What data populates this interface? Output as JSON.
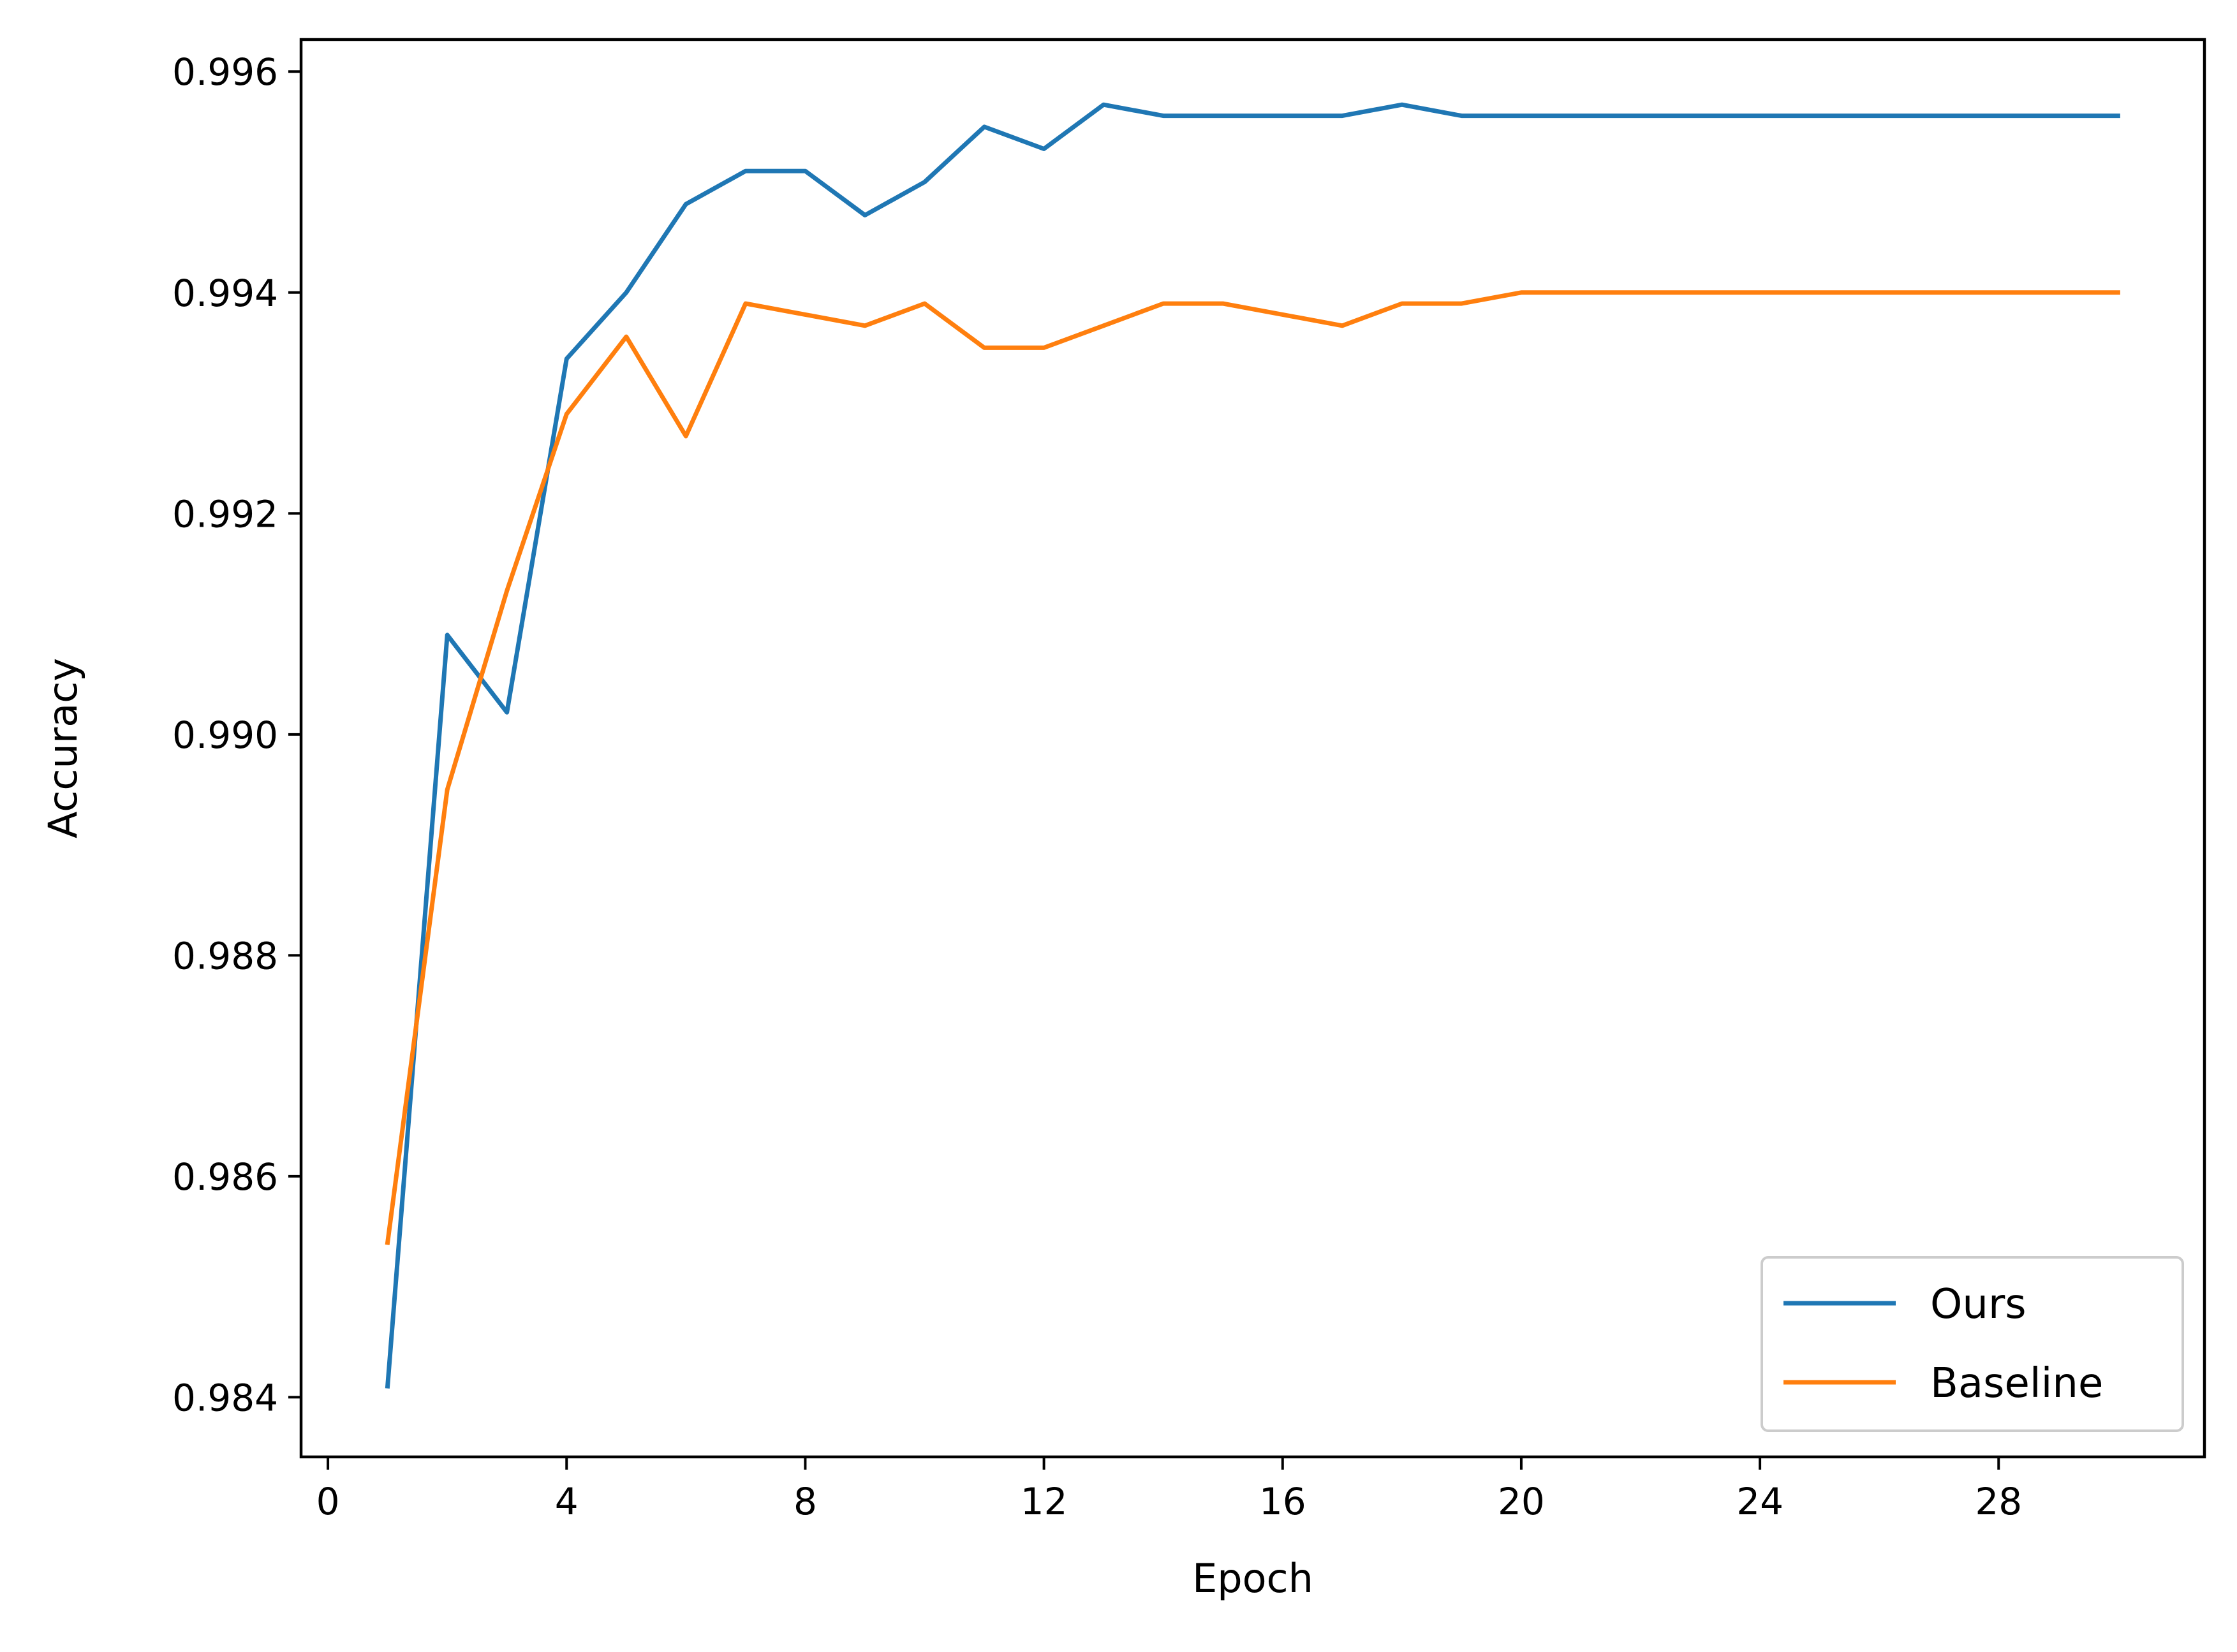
{
  "chart_data": {
    "type": "line",
    "title": "",
    "xlabel": "Epoch",
    "ylabel": "Accuracy",
    "xlim": [
      -0.45,
      31.45
    ],
    "ylim": [
      0.98346,
      0.99629
    ],
    "x_ticks": [
      0,
      4,
      8,
      12,
      16,
      20,
      24,
      28
    ],
    "x_tick_labels": [
      "0",
      "4",
      "8",
      "12",
      "16",
      "20",
      "24",
      "28"
    ],
    "y_ticks": [
      0.984,
      0.986,
      0.988,
      0.99,
      0.992,
      0.994,
      0.996
    ],
    "y_tick_labels": [
      "0.984",
      "0.986",
      "0.988",
      "0.990",
      "0.992",
      "0.994",
      "0.996"
    ],
    "grid": false,
    "legend_position": "lower-right",
    "x": [
      1,
      2,
      3,
      4,
      5,
      6,
      7,
      8,
      9,
      10,
      11,
      12,
      13,
      14,
      15,
      16,
      17,
      18,
      19,
      20,
      21,
      22,
      23,
      24,
      25,
      26,
      27,
      28,
      29,
      30
    ],
    "series": [
      {
        "name": "Ours",
        "color": "#1f77b4",
        "values": [
          0.9841,
          0.9909,
          0.9902,
          0.9934,
          0.994,
          0.9948,
          0.9951,
          0.9951,
          0.9947,
          0.995,
          0.9955,
          0.9953,
          0.9957,
          0.9956,
          0.9956,
          0.9956,
          0.9956,
          0.9957,
          0.9956,
          0.9956,
          0.9956,
          0.9956,
          0.9956,
          0.9956,
          0.9956,
          0.9956,
          0.9956,
          0.9956,
          0.9956,
          0.9956
        ]
      },
      {
        "name": "Baseline",
        "color": "#ff7f0e",
        "values": [
          0.9854,
          0.9895,
          0.9913,
          0.9929,
          0.9936,
          0.9927,
          0.9939,
          0.9938,
          0.9937,
          0.9939,
          0.9935,
          0.9935,
          0.9937,
          0.9939,
          0.9939,
          0.9938,
          0.9937,
          0.9939,
          0.9939,
          0.994,
          0.994,
          0.994,
          0.994,
          0.994,
          0.994,
          0.994,
          0.994,
          0.994,
          0.994,
          0.994
        ]
      }
    ]
  }
}
